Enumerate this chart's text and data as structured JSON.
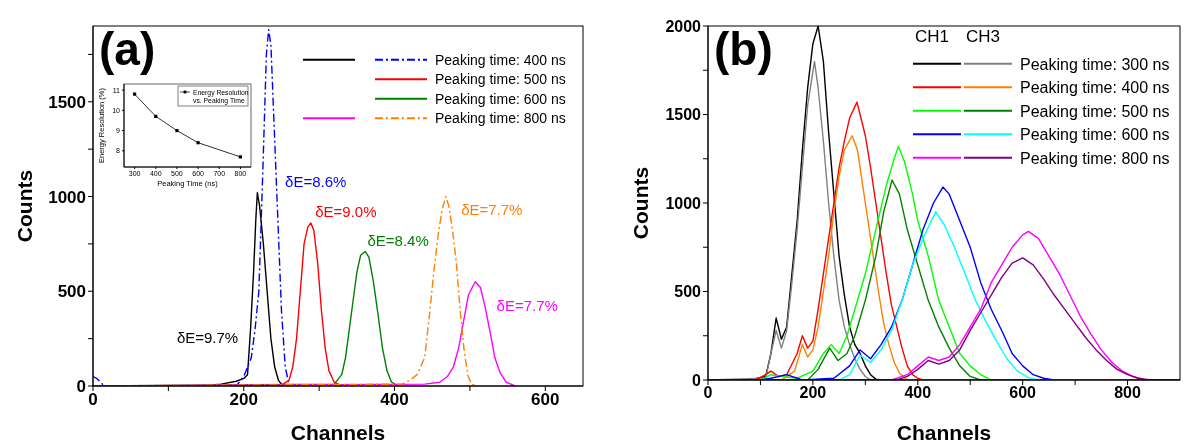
{
  "chart_data": [
    {
      "type": "line",
      "xlabel": "Channels",
      "ylabel": "Counts",
      "xlim": [
        0,
        650
      ],
      "ylim": [
        0,
        1900
      ],
      "xticks": [
        0,
        {
          "value": 100,
          "label": null
        },
        200,
        {
          "value": 300,
          "label": null
        },
        400,
        {
          "value": 500,
          "label": null
        },
        600
      ],
      "yticks": [
        0,
        {
          "value": 250,
          "label": null
        },
        500,
        {
          "value": 750,
          "label": null
        },
        1000,
        {
          "value": 1250,
          "label": null
        },
        1500,
        {
          "value": 1750,
          "label": null
        }
      ],
      "legend": "top right",
      "marker": "none",
      "series": [
        {
          "color": "#000000",
          "line_style": "solid",
          "x": [
            0,
            140,
            170,
            190,
            200,
            205,
            209,
            213,
            216,
            218,
            221,
            226,
            231,
            236,
            241,
            246,
            252
          ],
          "values": [
            0,
            0,
            10,
            25,
            40,
            60,
            300,
            600,
            880,
            1020,
            950,
            750,
            500,
            250,
            100,
            30,
            0
          ]
        },
        {
          "name": "Peaking time: 400 ns",
          "color": "#0000ff",
          "line_style": "dashed",
          "x": [
            0,
            5,
            15,
            190,
            200,
            210,
            215,
            220,
            225,
            230,
            233,
            236,
            240,
            245,
            250,
            255,
            260,
            265
          ],
          "values": [
            50,
            40,
            0,
            0,
            50,
            150,
            300,
            500,
            1100,
            1750,
            1880,
            1800,
            1400,
            900,
            400,
            100,
            10,
            0
          ]
        },
        {
          "name": "Peaking time: 500 ns",
          "color": "#ff0000",
          "line_style": "solid",
          "x": [
            0,
            250,
            260,
            265,
            270,
            275,
            280,
            285,
            289,
            293,
            298,
            303,
            308,
            313,
            320,
            330
          ],
          "values": [
            0,
            5,
            30,
            100,
            250,
            500,
            750,
            840,
            860,
            820,
            650,
            400,
            200,
            80,
            20,
            0
          ]
        },
        {
          "name": "Peaking time: 600 ns",
          "color": "#008000",
          "line_style": "solid",
          "x": [
            0,
            320,
            330,
            335,
            340,
            345,
            350,
            355,
            361,
            366,
            372,
            378,
            384,
            390,
            396,
            405
          ],
          "values": [
            0,
            10,
            60,
            150,
            300,
            450,
            600,
            690,
            710,
            680,
            550,
            380,
            200,
            80,
            20,
            0
          ]
        },
        {
          "color": "#ff00ff",
          "line_style": "solid",
          "x": [
            0,
            440,
            460,
            470,
            478,
            485,
            492,
            498,
            507,
            514,
            520,
            527,
            533,
            540,
            548,
            560
          ],
          "values": [
            0,
            10,
            20,
            50,
            100,
            200,
            350,
            480,
            550,
            520,
            420,
            280,
            150,
            70,
            20,
            0
          ]
        },
        {
          "name": "Peaking time: 800 ns",
          "color": "#ff8000",
          "line_style": "dashed",
          "x": [
            0,
            410,
            420,
            430,
            440,
            447,
            452,
            458,
            463,
            468,
            472,
            477,
            482,
            487,
            492,
            497,
            502,
            510
          ],
          "values": [
            0,
            10,
            30,
            60,
            150,
            400,
            600,
            800,
            930,
            1000,
            950,
            820,
            650,
            400,
            200,
            60,
            10,
            0
          ]
        }
      ],
      "annotations": [
        "(a)",
        {
          "text": "δE=9.7%",
          "x": 205,
          "y": 60
        },
        {
          "text": "δE=8.6%",
          "x": 245,
          "y": 900
        },
        {
          "text": "δE=9.0%",
          "x": 289,
          "y": 860
        },
        {
          "text": "δE=8.4%",
          "x": 361,
          "y": 710
        },
        {
          "text": "δE=7.7%",
          "x": 468,
          "y": 1000
        },
        {
          "text": "δE=7.7%",
          "x": 507,
          "y": 550
        }
      ]
    },
    {
      "type": "line",
      "xlabel": "Peaking Time (ns)",
      "ylabel": "Energy Resolution (%)",
      "xlim": [
        250,
        850
      ],
      "ylim": [
        7.2,
        11.3
      ],
      "xticks": [
        300,
        400,
        500,
        600,
        700,
        800
      ],
      "yticks": [
        8,
        9,
        10,
        11
      ],
      "legend": "top right",
      "marker": "square",
      "series": [
        {
          "name": "Energy Resolution vs. Peaking Time",
          "color": "#000000",
          "line_style": "solid",
          "x": [
            300,
            400,
            500,
            600,
            800
          ],
          "values": [
            10.8,
            9.7,
            9.0,
            8.4,
            7.7
          ]
        }
      ]
    },
    {
      "type": "line",
      "xlabel": "Channels",
      "ylabel": "Counts",
      "legend_title": "CH1 CH3",
      "xlim": [
        0,
        900
      ],
      "ylim": [
        0,
        2000
      ],
      "xticks": [
        0,
        {
          "value": 100,
          "label": null
        },
        200,
        {
          "value": 300,
          "label": null
        },
        400,
        {
          "value": 500,
          "label": null
        },
        600,
        {
          "value": 700,
          "label": null
        },
        800
      ],
      "yticks": [
        0,
        {
          "value": 250,
          "label": null
        },
        500,
        {
          "value": 750,
          "label": null
        },
        1000,
        {
          "value": 1250,
          "label": null
        },
        1500,
        {
          "value": 1750,
          "label": null
        },
        2000
      ],
      "legend": "top right",
      "marker": "none",
      "series": [
        {
          "color": "#000000",
          "line_style": "solid",
          "x": [
            0,
            80,
            110,
            120,
            130,
            140,
            150,
            160,
            170,
            180,
            190,
            200,
            210,
            220,
            230,
            240,
            250,
            260,
            270,
            280,
            290,
            300,
            310,
            320,
            330,
            900
          ],
          "values": [
            0,
            0,
            20,
            150,
            350,
            230,
            300,
            600,
            900,
            1300,
            1650,
            1900,
            2000,
            1800,
            1400,
            1050,
            700,
            480,
            300,
            200,
            150,
            80,
            30,
            5,
            0,
            0
          ]
        },
        {
          "name": "Peaking time: 300 ns",
          "color": "#808080",
          "line_style": "solid",
          "x": [
            0,
            110,
            120,
            130,
            140,
            150,
            160,
            170,
            180,
            190,
            203,
            210,
            220,
            230,
            240,
            250,
            260,
            270,
            280,
            290,
            300,
            310,
            900
          ],
          "values": [
            0,
            10,
            150,
            280,
            180,
            280,
            550,
            850,
            1200,
            1550,
            1800,
            1650,
            1350,
            1000,
            700,
            450,
            300,
            200,
            120,
            60,
            20,
            0,
            0
          ]
        },
        {
          "color": "#ff0000",
          "line_style": "solid",
          "x": [
            0,
            90,
            110,
            120,
            135,
            150,
            170,
            180,
            190,
            200,
            210,
            220,
            230,
            240,
            250,
            260,
            270,
            284,
            290,
            300,
            310,
            320,
            330,
            340,
            350,
            360,
            370,
            380,
            390,
            400,
            410,
            900
          ],
          "values": [
            0,
            0,
            30,
            50,
            20,
            30,
            150,
            250,
            180,
            220,
            400,
            600,
            800,
            1000,
            1200,
            1350,
            1480,
            1570,
            1500,
            1380,
            1200,
            1000,
            800,
            600,
            420,
            300,
            180,
            80,
            30,
            10,
            0,
            0
          ]
        },
        {
          "name": "Peaking time: 400 ns",
          "color": "#ff8000",
          "line_style": "solid",
          "x": [
            0,
            140,
            165,
            180,
            190,
            200,
            210,
            220,
            230,
            240,
            250,
            260,
            275,
            285,
            295,
            305,
            315,
            325,
            335,
            345,
            355,
            365,
            380,
            900
          ],
          "values": [
            0,
            0,
            50,
            200,
            130,
            170,
            300,
            500,
            700,
            950,
            1150,
            1300,
            1380,
            1300,
            1100,
            900,
            700,
            500,
            320,
            200,
            100,
            40,
            0,
            0
          ]
        },
        {
          "color": "#00ff00",
          "line_style": "solid",
          "x": [
            0,
            100,
            120,
            140,
            170,
            200,
            220,
            235,
            250,
            265,
            280,
            300,
            320,
            340,
            355,
            363,
            375,
            390,
            400,
            420,
            440,
            460,
            480,
            500,
            520,
            540,
            900
          ],
          "values": [
            0,
            0,
            30,
            20,
            10,
            50,
            150,
            200,
            150,
            250,
            400,
            600,
            850,
            1100,
            1250,
            1320,
            1230,
            1050,
            900,
            700,
            450,
            300,
            150,
            80,
            30,
            0,
            0
          ]
        },
        {
          "name": "Peaking time: 500 ns",
          "color": "#008000",
          "line_style": "solid",
          "x": [
            0,
            190,
            210,
            232,
            248,
            265,
            280,
            300,
            320,
            335,
            351,
            365,
            380,
            400,
            420,
            440,
            460,
            480,
            500,
            520,
            900
          ],
          "values": [
            0,
            0,
            60,
            180,
            110,
            150,
            250,
            450,
            700,
            950,
            1130,
            1050,
            850,
            650,
            450,
            300,
            180,
            80,
            20,
            0,
            0
          ]
        },
        {
          "color": "#0000ff",
          "line_style": "solid",
          "x": [
            0,
            100,
            120,
            150,
            180,
            240,
            270,
            290,
            310,
            330,
            350,
            370,
            390,
            410,
            430,
            448,
            460,
            480,
            500,
            520,
            540,
            560,
            580,
            600,
            620,
            640,
            660,
            900
          ],
          "values": [
            0,
            0,
            10,
            30,
            0,
            10,
            80,
            170,
            120,
            200,
            300,
            450,
            650,
            850,
            1000,
            1090,
            1050,
            900,
            750,
            550,
            400,
            280,
            150,
            80,
            30,
            10,
            0,
            0
          ]
        },
        {
          "name": "Peaking time: 600 ns",
          "color": "#00ffff",
          "line_style": "solid",
          "x": [
            0,
            250,
            270,
            290,
            310,
            330,
            350,
            370,
            390,
            410,
            434,
            450,
            470,
            490,
            510,
            530,
            550,
            570,
            590,
            610,
            630,
            900
          ],
          "values": [
            0,
            0,
            30,
            140,
            100,
            170,
            280,
            450,
            650,
            800,
            950,
            880,
            750,
            600,
            450,
            330,
            220,
            120,
            50,
            15,
            0,
            0
          ]
        },
        {
          "color": "#ff00ff",
          "line_style": "solid",
          "x": [
            0,
            350,
            380,
            400,
            420,
            440,
            460,
            480,
            500,
            520,
            540,
            560,
            580,
            600,
            611,
            630,
            650,
            670,
            690,
            710,
            730,
            750,
            770,
            790,
            810,
            830,
            850,
            900
          ],
          "values": [
            0,
            0,
            30,
            80,
            130,
            110,
            130,
            200,
            300,
            400,
            550,
            650,
            750,
            820,
            840,
            800,
            700,
            600,
            480,
            360,
            260,
            170,
            100,
            50,
            20,
            5,
            0,
            0
          ]
        },
        {
          "name": "Peaking time: 800 ns",
          "color": "#800080",
          "line_style": "solid",
          "x": [
            0,
            360,
            380,
            400,
            420,
            440,
            460,
            480,
            500,
            520,
            540,
            560,
            580,
            600,
            620,
            640,
            660,
            680,
            700,
            720,
            740,
            760,
            780,
            800,
            820,
            840,
            900
          ],
          "values": [
            0,
            0,
            20,
            60,
            110,
            90,
            110,
            170,
            280,
            380,
            480,
            580,
            660,
            690,
            650,
            570,
            480,
            400,
            320,
            240,
            170,
            110,
            60,
            30,
            10,
            0,
            0
          ]
        }
      ],
      "annotations": [
        "(b)"
      ]
    }
  ]
}
